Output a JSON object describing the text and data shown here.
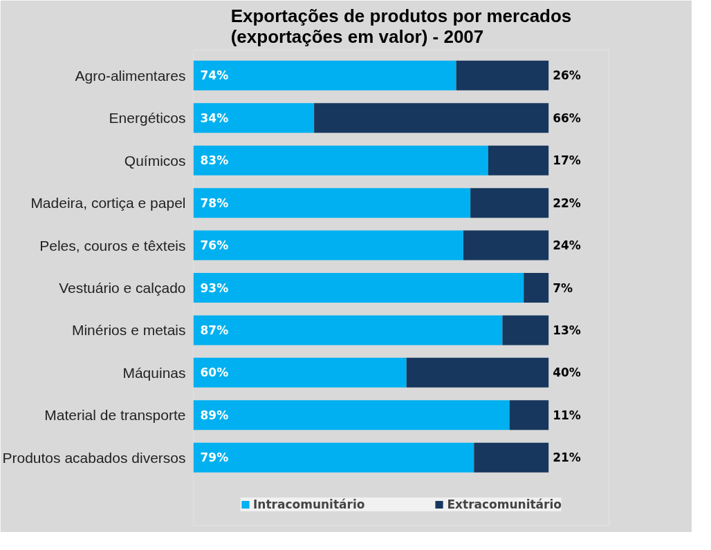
{
  "chart_data": {
    "type": "bar",
    "orientation": "horizontal",
    "stacked": true,
    "title": "Exportações de produtos por mercados\n(exportações em valor) - 2007",
    "categories": [
      "Agro-alimentares",
      "Energéticos",
      "Químicos",
      "Madeira, cortiça e papel",
      "Peles, couros e têxteis",
      "Vestuário e calçado",
      "Minérios e metais",
      "Máquinas",
      "Material de transporte",
      "Produtos acabados diversos"
    ],
    "series": [
      {
        "name": "Intracomunitário",
        "color": "#00b0f0",
        "values": [
          74,
          34,
          83,
          78,
          76,
          93,
          87,
          60,
          89,
          79
        ],
        "value_labels": [
          "74%",
          "34%",
          "83%",
          "78%",
          "76%",
          "93%",
          "87%",
          "60%",
          "89%",
          "79%"
        ]
      },
      {
        "name": "Extracomunitário",
        "color": "#17375e",
        "values": [
          26,
          66,
          17,
          22,
          24,
          7,
          13,
          40,
          11,
          21
        ],
        "value_labels": [
          "26%",
          "66%",
          "17%",
          "22%",
          "24%",
          "7%",
          "13%",
          "40%",
          "11%",
          "21%"
        ]
      }
    ],
    "legend": "bottom",
    "grid": false,
    "tick_labels": "y"
  }
}
